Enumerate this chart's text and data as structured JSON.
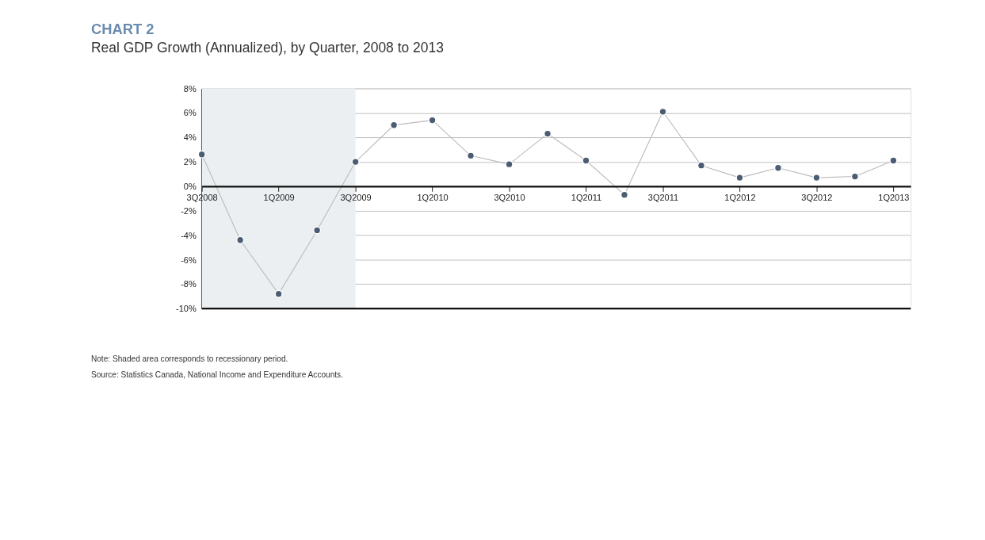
{
  "chart_data": {
    "type": "line",
    "title": "CHART 2",
    "subtitle": "Real GDP Growth (Annualized), by Quarter, 2008 to 2013",
    "categories": [
      "3Q2008",
      null,
      "1Q2009",
      null,
      "3Q2009",
      null,
      "1Q2010",
      null,
      "3Q2010",
      null,
      "1Q2011",
      null,
      "3Q2011",
      null,
      "1Q2012",
      null,
      "3Q2012",
      null,
      "1Q2013"
    ],
    "series": [
      {
        "color": "#4b5d73",
        "values": [
          2.6,
          -4.4,
          -8.8,
          -3.6,
          2.0,
          5.0,
          5.4,
          2.5,
          1.8,
          4.3,
          2.1,
          -0.7,
          6.1,
          1.7,
          0.7,
          1.5,
          0.7,
          0.8,
          2.1
        ]
      }
    ],
    "ylim": [
      -10,
      8
    ],
    "yticks": [
      {
        "value": -10,
        "label": "-10%"
      },
      {
        "value": -8,
        "label": "-8%"
      },
      {
        "value": -6,
        "label": "-6%"
      },
      {
        "value": -4,
        "label": "-4%"
      },
      {
        "value": -2,
        "label": "-2%"
      },
      {
        "value": 0,
        "label": "0%"
      },
      {
        "value": 2,
        "label": "2%"
      },
      {
        "value": 4,
        "label": "4%"
      },
      {
        "value": 6,
        "label": "6%"
      },
      {
        "value": 8,
        "label": "8%"
      }
    ],
    "bands": [
      {
        "axis": "x",
        "from": "3Q2008",
        "to": "3Q2009",
        "color": "#eceff2"
      }
    ],
    "grid": "y",
    "marker": "circle",
    "line_style": "solid",
    "annotations": [
      "Note: Shaded area corresponds to recessionary period.",
      "Source: Statistics Canada, National Income and Expenditure Accounts."
    ]
  }
}
